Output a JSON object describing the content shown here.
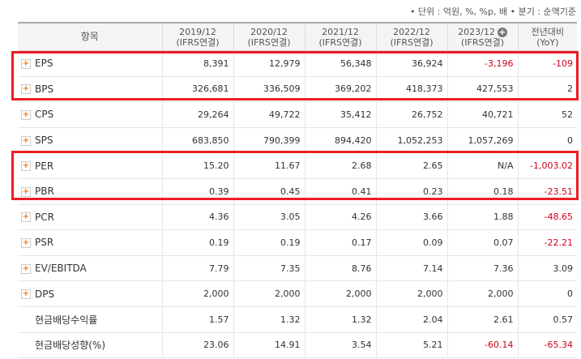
{
  "header_note": "• 단위 : 억원, %, %p, 배   • 분기 : 순액기준",
  "columns": [
    {
      "year": "2019/12",
      "basis": "(IFRS연결)"
    },
    {
      "year": "2020/12",
      "basis": "(IFRS연결)"
    },
    {
      "year": "2021/12",
      "basis": "(IFRS연결)"
    },
    {
      "year": "2022/12",
      "basis": "(IFRS연결)"
    },
    {
      "year": "2023/12",
      "basis": "(IFRS연결)"
    }
  ],
  "col_item": "항목",
  "col_yoy": "전년대비",
  "col_yoy_sub": "(YoY)",
  "expand_icon": "+",
  "add_icon": "+",
  "rows": [
    {
      "label": "EPS",
      "expand": true,
      "values": [
        "8,391",
        "12,979",
        "56,348",
        "36,924",
        "-3,196"
      ],
      "yoy": "-109",
      "neg": [
        false,
        false,
        false,
        false,
        true
      ],
      "yoy_neg": true
    },
    {
      "label": "BPS",
      "expand": true,
      "values": [
        "326,681",
        "336,509",
        "369,202",
        "418,373",
        "427,553"
      ],
      "yoy": "2",
      "neg": [
        false,
        false,
        false,
        false,
        false
      ],
      "yoy_neg": false
    },
    {
      "label": "CPS",
      "expand": true,
      "values": [
        "29,264",
        "49,722",
        "35,412",
        "26,752",
        "40,721"
      ],
      "yoy": "52",
      "neg": [
        false,
        false,
        false,
        false,
        false
      ],
      "yoy_neg": false
    },
    {
      "label": "SPS",
      "expand": true,
      "values": [
        "683,850",
        "790,399",
        "894,420",
        "1,052,253",
        "1,057,269"
      ],
      "yoy": "0",
      "neg": [
        false,
        false,
        false,
        false,
        false
      ],
      "yoy_neg": false
    },
    {
      "label": "PER",
      "expand": true,
      "values": [
        "15.20",
        "11.67",
        "2.68",
        "2.65",
        "N/A"
      ],
      "yoy": "-1,003.02",
      "neg": [
        false,
        false,
        false,
        false,
        false
      ],
      "yoy_neg": true
    },
    {
      "label": "PBR",
      "expand": true,
      "values": [
        "0.39",
        "0.45",
        "0.41",
        "0.23",
        "0.18"
      ],
      "yoy": "-23.51",
      "neg": [
        false,
        false,
        false,
        false,
        false
      ],
      "yoy_neg": true
    },
    {
      "label": "PCR",
      "expand": true,
      "values": [
        "4.36",
        "3.05",
        "4.26",
        "3.66",
        "1.88"
      ],
      "yoy": "-48.65",
      "neg": [
        false,
        false,
        false,
        false,
        false
      ],
      "yoy_neg": true
    },
    {
      "label": "PSR",
      "expand": true,
      "values": [
        "0.19",
        "0.19",
        "0.17",
        "0.09",
        "0.07"
      ],
      "yoy": "-22.21",
      "neg": [
        false,
        false,
        false,
        false,
        false
      ],
      "yoy_neg": true
    },
    {
      "label": "EV/EBITDA",
      "expand": true,
      "values": [
        "7.79",
        "7.35",
        "8.76",
        "7.14",
        "7.36"
      ],
      "yoy": "3.09",
      "neg": [
        false,
        false,
        false,
        false,
        false
      ],
      "yoy_neg": false
    },
    {
      "label": "DPS",
      "expand": true,
      "values": [
        "2,000",
        "2,000",
        "2,000",
        "2,000",
        "2,000"
      ],
      "yoy": "0",
      "neg": [
        false,
        false,
        false,
        false,
        false
      ],
      "yoy_neg": false
    },
    {
      "label": "현금배당수익률",
      "expand": false,
      "values": [
        "1.57",
        "1.32",
        "1.32",
        "2.04",
        "2.61"
      ],
      "yoy": "0.57",
      "neg": [
        false,
        false,
        false,
        false,
        false
      ],
      "yoy_neg": false
    },
    {
      "label": "현금배당성향(%)",
      "expand": false,
      "values": [
        "23.06",
        "14.91",
        "3.54",
        "5.21",
        "-60.14"
      ],
      "yoy": "-65.34",
      "neg": [
        false,
        false,
        false,
        false,
        true
      ],
      "yoy_neg": true
    }
  ],
  "highlight_color": "#ee1c25"
}
